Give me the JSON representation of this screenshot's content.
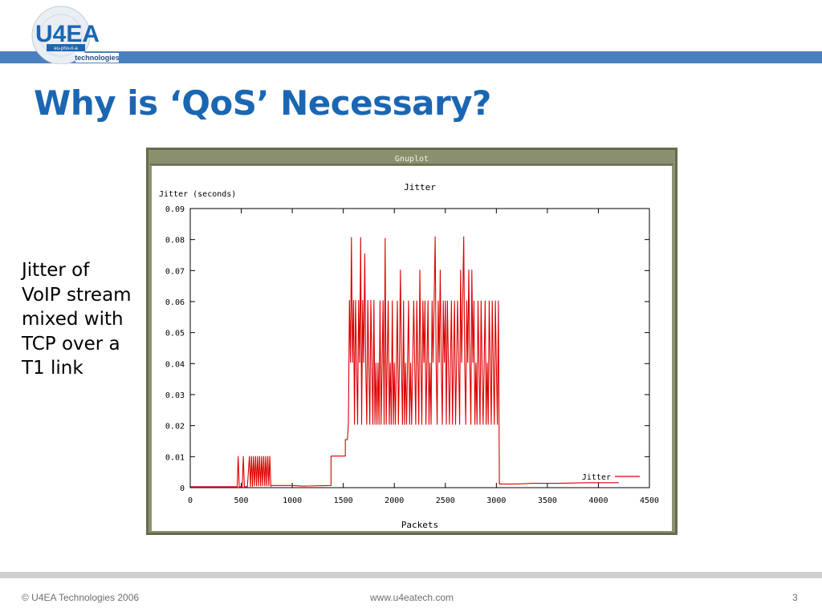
{
  "logo": {
    "brand": "U4EA",
    "tagline": "eu-pho-ri-a",
    "sub": "technologies"
  },
  "slide": {
    "title": "Why is ‘QoS’ Necessary?",
    "caption_lines": [
      "Jitter of",
      "VoIP stream",
      "mixed with",
      "TCP over a",
      "T1 link"
    ]
  },
  "window": {
    "title": "Gnuplot"
  },
  "colors": {
    "title": "#1b66b3",
    "top_bar": "#4a7fc1",
    "series": "#dd0000",
    "window_frame": "#555a3c"
  },
  "chart_data": {
    "type": "line",
    "title": "Jitter",
    "xlabel": "Packets",
    "ylabel": "Jitter (seconds)",
    "xlim": [
      0,
      4500
    ],
    "ylim": [
      0,
      0.09
    ],
    "x_ticks": [
      "0",
      "500",
      "1000",
      "1500",
      "2000",
      "2500",
      "3000",
      "3500",
      "4000",
      "4500"
    ],
    "y_ticks": [
      "0",
      "0.01",
      "0.02",
      "0.03",
      "0.04",
      "0.05",
      "0.06",
      "0.07",
      "0.08",
      "0.09"
    ],
    "grid": false,
    "legend": "bottom-right",
    "series": [
      {
        "name": "Jitter",
        "points": [
          [
            0,
            0.0003
          ],
          [
            460,
            0.0003
          ],
          [
            470,
            0.0102
          ],
          [
            480,
            0.0003
          ],
          [
            510,
            0.0003
          ],
          [
            520,
            0.0102
          ],
          [
            530,
            0.0003
          ],
          [
            560,
            0.0003
          ],
          [
            580,
            0.0102
          ],
          [
            590,
            0.0003
          ],
          [
            600,
            0.0102
          ],
          [
            610,
            0.0003
          ],
          [
            620,
            0.0102
          ],
          [
            630,
            0.0005
          ],
          [
            640,
            0.0102
          ],
          [
            650,
            0.0005
          ],
          [
            660,
            0.0102
          ],
          [
            670,
            0.0005
          ],
          [
            680,
            0.0102
          ],
          [
            690,
            0.0005
          ],
          [
            700,
            0.0102
          ],
          [
            710,
            0.0005
          ],
          [
            720,
            0.0102
          ],
          [
            730,
            0.0005
          ],
          [
            740,
            0.0102
          ],
          [
            750,
            0.0005
          ],
          [
            760,
            0.0102
          ],
          [
            770,
            0.0005
          ],
          [
            780,
            0.0102
          ],
          [
            790,
            0.0005
          ],
          [
            800,
            0.0007
          ],
          [
            1000,
            0.0007
          ],
          [
            1100,
            0.0005
          ],
          [
            1380,
            0.0007
          ],
          [
            1380,
            0.0102
          ],
          [
            1520,
            0.0102
          ],
          [
            1520,
            0.0155
          ],
          [
            1540,
            0.0155
          ],
          [
            1550,
            0.0203
          ],
          [
            1560,
            0.0605
          ],
          [
            1570,
            0.0403
          ],
          [
            1580,
            0.0808
          ],
          [
            1590,
            0.0403
          ],
          [
            1600,
            0.0605
          ],
          [
            1610,
            0.0203
          ],
          [
            1620,
            0.0605
          ],
          [
            1630,
            0.0403
          ],
          [
            1640,
            0.0203
          ],
          [
            1650,
            0.0605
          ],
          [
            1660,
            0.0403
          ],
          [
            1670,
            0.0808
          ],
          [
            1680,
            0.0203
          ],
          [
            1690,
            0.0605
          ],
          [
            1700,
            0.0403
          ],
          [
            1710,
            0.0755
          ],
          [
            1720,
            0.0403
          ],
          [
            1730,
            0.0203
          ],
          [
            1740,
            0.0605
          ],
          [
            1750,
            0.0403
          ],
          [
            1760,
            0.0203
          ],
          [
            1770,
            0.0605
          ],
          [
            1780,
            0.0403
          ],
          [
            1790,
            0.0203
          ],
          [
            1800,
            0.0605
          ],
          [
            1810,
            0.0203
          ],
          [
            1820,
            0.0403
          ],
          [
            1830,
            0.0203
          ],
          [
            1840,
            0.0403
          ],
          [
            1850,
            0.0203
          ],
          [
            1860,
            0.0603
          ],
          [
            1870,
            0.0203
          ],
          [
            1880,
            0.0403
          ],
          [
            1890,
            0.0604
          ],
          [
            1900,
            0.0203
          ],
          [
            1910,
            0.0805
          ],
          [
            1920,
            0.0203
          ],
          [
            1930,
            0.0403
          ],
          [
            1940,
            0.0603
          ],
          [
            1950,
            0.0203
          ],
          [
            1960,
            0.0403
          ],
          [
            1970,
            0.0203
          ],
          [
            1980,
            0.0603
          ],
          [
            1990,
            0.0203
          ],
          [
            2000,
            0.0403
          ],
          [
            2010,
            0.0203
          ],
          [
            2020,
            0.0403
          ],
          [
            2030,
            0.0603
          ],
          [
            2040,
            0.0203
          ],
          [
            2050,
            0.0403
          ],
          [
            2060,
            0.0703
          ],
          [
            2070,
            0.0403
          ],
          [
            2080,
            0.0203
          ],
          [
            2090,
            0.0603
          ],
          [
            2100,
            0.0203
          ],
          [
            2110,
            0.0403
          ],
          [
            2120,
            0.0203
          ],
          [
            2130,
            0.0403
          ],
          [
            2140,
            0.0603
          ],
          [
            2150,
            0.0203
          ],
          [
            2160,
            0.0403
          ],
          [
            2170,
            0.0203
          ],
          [
            2180,
            0.0403
          ],
          [
            2190,
            0.0603
          ],
          [
            2200,
            0.0403
          ],
          [
            2210,
            0.0203
          ],
          [
            2220,
            0.0603
          ],
          [
            2230,
            0.0403
          ],
          [
            2240,
            0.0203
          ],
          [
            2250,
            0.0703
          ],
          [
            2260,
            0.0403
          ],
          [
            2270,
            0.0203
          ],
          [
            2280,
            0.0603
          ],
          [
            2290,
            0.0403
          ],
          [
            2300,
            0.0603
          ],
          [
            2310,
            0.0203
          ],
          [
            2320,
            0.0403
          ],
          [
            2330,
            0.0603
          ],
          [
            2340,
            0.0203
          ],
          [
            2350,
            0.0403
          ],
          [
            2360,
            0.0203
          ],
          [
            2370,
            0.0603
          ],
          [
            2380,
            0.0403
          ],
          [
            2390,
            0.0603
          ],
          [
            2400,
            0.081
          ],
          [
            2410,
            0.0403
          ],
          [
            2420,
            0.0203
          ],
          [
            2430,
            0.0603
          ],
          [
            2440,
            0.0403
          ],
          [
            2450,
            0.0703
          ],
          [
            2460,
            0.0403
          ],
          [
            2470,
            0.0203
          ],
          [
            2480,
            0.0603
          ],
          [
            2490,
            0.0403
          ],
          [
            2500,
            0.0603
          ],
          [
            2510,
            0.0203
          ],
          [
            2520,
            0.0603
          ],
          [
            2530,
            0.0403
          ],
          [
            2540,
            0.0203
          ],
          [
            2550,
            0.0403
          ],
          [
            2560,
            0.0603
          ],
          [
            2570,
            0.0203
          ],
          [
            2580,
            0.0403
          ],
          [
            2590,
            0.0603
          ],
          [
            2600,
            0.0203
          ],
          [
            2610,
            0.0403
          ],
          [
            2620,
            0.0603
          ],
          [
            2630,
            0.0403
          ],
          [
            2640,
            0.0203
          ],
          [
            2650,
            0.0703
          ],
          [
            2660,
            0.0403
          ],
          [
            2670,
            0.0603
          ],
          [
            2680,
            0.081
          ],
          [
            2690,
            0.0403
          ],
          [
            2700,
            0.0203
          ],
          [
            2710,
            0.0603
          ],
          [
            2720,
            0.0403
          ],
          [
            2730,
            0.0703
          ],
          [
            2740,
            0.0403
          ],
          [
            2750,
            0.0203
          ],
          [
            2760,
            0.0703
          ],
          [
            2770,
            0.0403
          ],
          [
            2780,
            0.0603
          ],
          [
            2790,
            0.0203
          ],
          [
            2800,
            0.0403
          ],
          [
            2810,
            0.0203
          ],
          [
            2820,
            0.0603
          ],
          [
            2830,
            0.0403
          ],
          [
            2840,
            0.0203
          ],
          [
            2850,
            0.0603
          ],
          [
            2860,
            0.0403
          ],
          [
            2870,
            0.0203
          ],
          [
            2880,
            0.0403
          ],
          [
            2890,
            0.0603
          ],
          [
            2900,
            0.0203
          ],
          [
            2910,
            0.0403
          ],
          [
            2920,
            0.0203
          ],
          [
            2930,
            0.0603
          ],
          [
            2940,
            0.0403
          ],
          [
            2950,
            0.0203
          ],
          [
            2960,
            0.0603
          ],
          [
            2970,
            0.0403
          ],
          [
            2980,
            0.0203
          ],
          [
            2990,
            0.0603
          ],
          [
            3000,
            0.0403
          ],
          [
            3010,
            0.0203
          ],
          [
            3020,
            0.0603
          ],
          [
            3030,
            0.0012
          ],
          [
            3200,
            0.0012
          ],
          [
            3350,
            0.0014
          ],
          [
            3600,
            0.0014
          ],
          [
            3900,
            0.0016
          ],
          [
            4200,
            0.0016
          ]
        ]
      }
    ]
  },
  "footer": {
    "left": "© U4EA Technologies 2006",
    "center": "www.u4eatech.com",
    "page": "3"
  }
}
